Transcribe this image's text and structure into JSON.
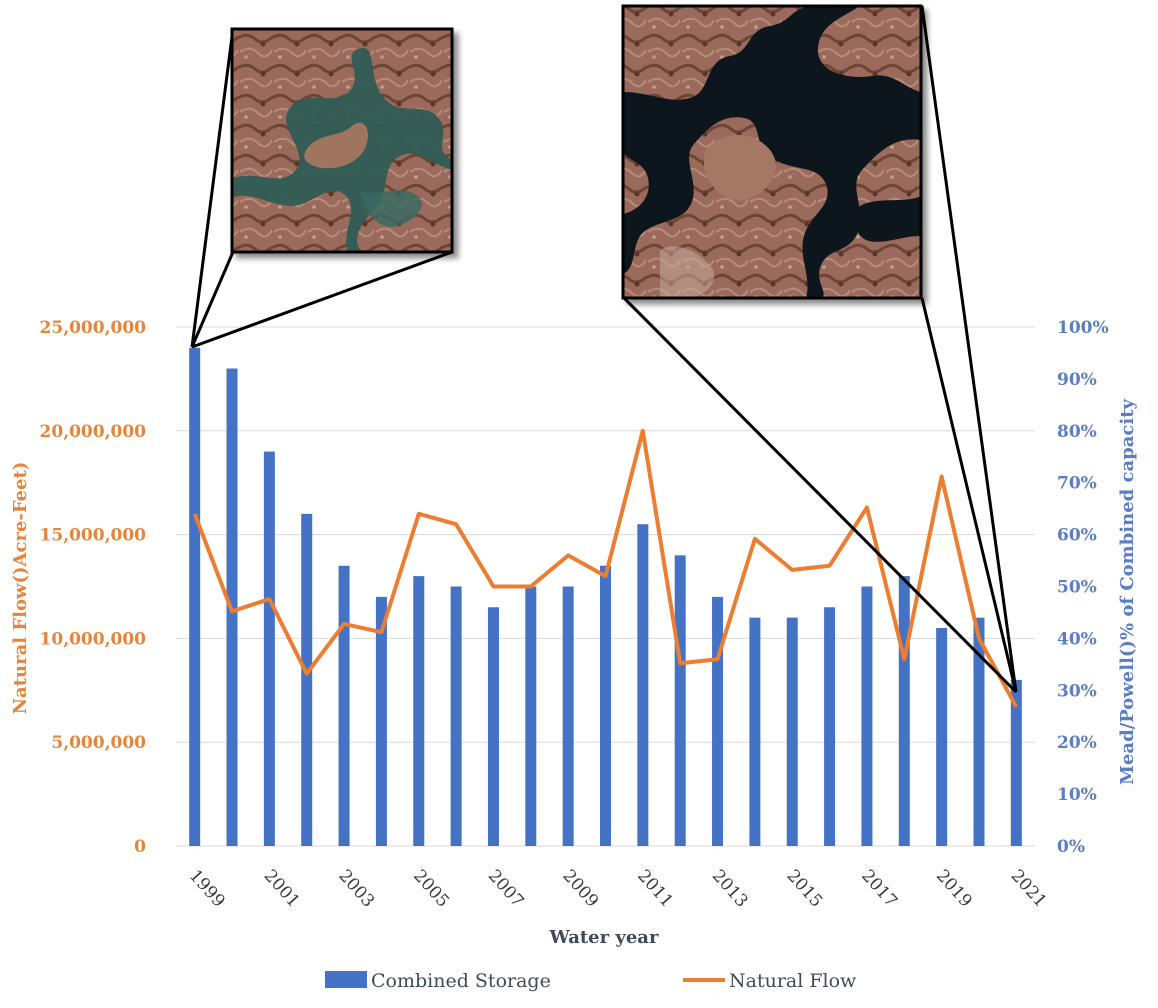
{
  "chart_data": {
    "type": "bar",
    "categories": [
      "1999",
      "2000",
      "2001",
      "2002",
      "2003",
      "2004",
      "2005",
      "2006",
      "2007",
      "2008",
      "2009",
      "2010",
      "2011",
      "2012",
      "2013",
      "2014",
      "2015",
      "2016",
      "2017",
      "2018",
      "2019",
      "2020",
      "2021"
    ],
    "x_tick_labels": [
      "1999",
      "2001",
      "2003",
      "2005",
      "2007",
      "2009",
      "2011",
      "2013",
      "2015",
      "2017",
      "2019",
      "2021"
    ],
    "series": [
      {
        "name": "Combined Storage",
        "type": "bar",
        "axis": "right",
        "unit": "% of combined capacity",
        "color": "#4472C4",
        "values": [
          96,
          92,
          76,
          64,
          54,
          48,
          52,
          50,
          46,
          50,
          50,
          54,
          62,
          56,
          48,
          44,
          44,
          46,
          50,
          52,
          42,
          44,
          32
        ]
      },
      {
        "name": "Natural Flow",
        "type": "line",
        "axis": "left",
        "unit": "acre-feet",
        "color": "#ED7D31",
        "values": [
          16000000,
          11300000,
          11900000,
          8300000,
          10700000,
          10300000,
          16000000,
          15500000,
          12500000,
          12500000,
          14000000,
          13000000,
          20000000,
          8800000,
          9000000,
          14800000,
          13300000,
          13500000,
          16300000,
          9000000,
          17800000,
          10000000,
          6700000
        ]
      }
    ],
    "y_left": {
      "label": "Natural Flow()Acre-Feet)",
      "range": [
        0,
        25000000
      ],
      "ticks": [
        "0",
        "5,000,000",
        "10,000,000",
        "15,000,000",
        "20,000,000",
        "25,000,000"
      ]
    },
    "y_right": {
      "label": "Mead/Powell()% of Combined capacity",
      "range": [
        0,
        100
      ],
      "ticks": [
        "0%",
        "10%",
        "20%",
        "30%",
        "40%",
        "50%",
        "60%",
        "70%",
        "80%",
        "90%",
        "100%"
      ]
    },
    "xlabel": "Water year",
    "legend": [
      "Combined Storage",
      "Natural Flow"
    ],
    "legend_position": "bottom",
    "grid": true,
    "annotations": [
      {
        "kind": "satellite-inset",
        "year": "1999",
        "description": "lake-powell-1999-satellite"
      },
      {
        "kind": "satellite-inset",
        "year": "2021",
        "description": "lake-powell-2021-satellite"
      }
    ]
  }
}
